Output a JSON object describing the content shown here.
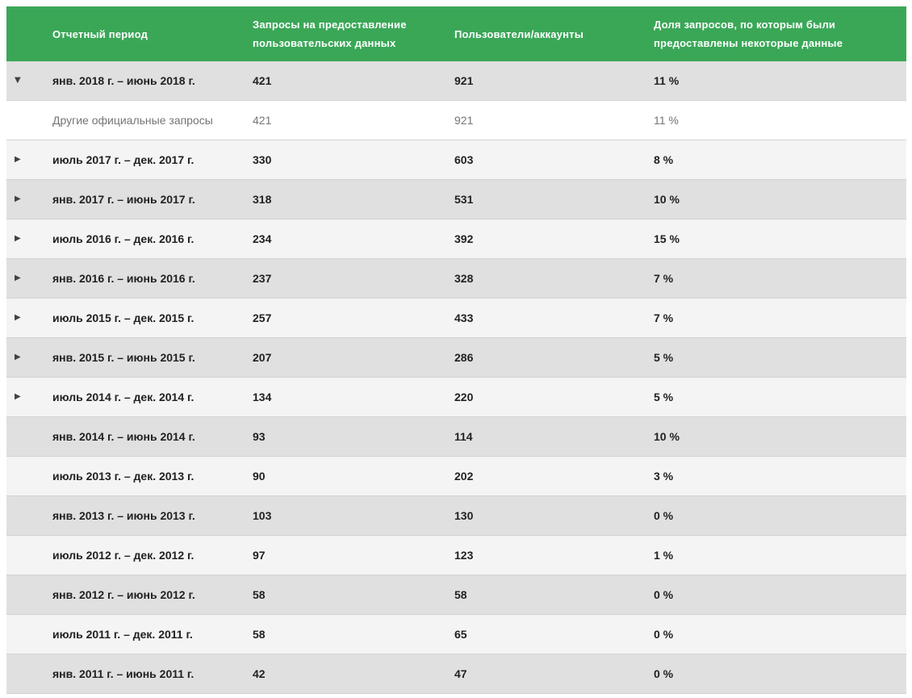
{
  "colors": {
    "header_bg": "#3aa757",
    "header_text": "#ffffff",
    "row_dark_bg": "#e0e0e0",
    "row_light_bg": "#f4f4f4",
    "subrow_bg": "#ffffff",
    "primary_text": "#212121",
    "secondary_text": "#757575",
    "arrow_color": "#424242"
  },
  "icons": {
    "expanded_glyph": "▼",
    "collapsed_glyph": "▶"
  },
  "table": {
    "columns": [
      {
        "label": "Отчетный период"
      },
      {
        "label": "Запросы на предоставление пользовательских данных"
      },
      {
        "label": "Пользователи/аккаунты"
      },
      {
        "label": "Доля запросов, по которым были предоставлены некоторые данные"
      }
    ],
    "rows": [
      {
        "period": "янв. 2018 г. – июнь 2018 г.",
        "requests": "421",
        "users": "921",
        "share": "11 %",
        "expander": "expanded",
        "variant": "dark"
      },
      {
        "period": "Другие официальные запросы",
        "requests": "421",
        "users": "921",
        "share": "11 %",
        "expander": "none",
        "variant": "subrow"
      },
      {
        "period": "июль 2017 г. – дек. 2017 г.",
        "requests": "330",
        "users": "603",
        "share": "8 %",
        "expander": "collapsed",
        "variant": "light"
      },
      {
        "period": "янв. 2017 г. – июнь 2017 г.",
        "requests": "318",
        "users": "531",
        "share": "10 %",
        "expander": "collapsed",
        "variant": "dark"
      },
      {
        "period": "июль 2016 г. – дек. 2016 г.",
        "requests": "234",
        "users": "392",
        "share": "15 %",
        "expander": "collapsed",
        "variant": "light"
      },
      {
        "period": "янв. 2016 г. – июнь 2016 г.",
        "requests": "237",
        "users": "328",
        "share": "7 %",
        "expander": "collapsed",
        "variant": "dark"
      },
      {
        "period": "июль 2015 г. – дек. 2015 г.",
        "requests": "257",
        "users": "433",
        "share": "7 %",
        "expander": "collapsed",
        "variant": "light"
      },
      {
        "period": "янв. 2015 г. – июнь 2015 г.",
        "requests": "207",
        "users": "286",
        "share": "5 %",
        "expander": "collapsed",
        "variant": "dark"
      },
      {
        "period": "июль 2014 г. – дек. 2014 г.",
        "requests": "134",
        "users": "220",
        "share": "5 %",
        "expander": "collapsed",
        "variant": "light"
      },
      {
        "period": "янв. 2014 г. – июнь 2014 г.",
        "requests": "93",
        "users": "114",
        "share": "10 %",
        "expander": "none",
        "variant": "dark"
      },
      {
        "period": "июль 2013 г. – дек. 2013 г.",
        "requests": "90",
        "users": "202",
        "share": "3 %",
        "expander": "none",
        "variant": "light"
      },
      {
        "period": "янв. 2013 г. – июнь 2013 г.",
        "requests": "103",
        "users": "130",
        "share": "0 %",
        "expander": "none",
        "variant": "dark"
      },
      {
        "period": "июль 2012 г. – дек. 2012 г.",
        "requests": "97",
        "users": "123",
        "share": "1 %",
        "expander": "none",
        "variant": "light"
      },
      {
        "period": "янв. 2012 г. – июнь 2012 г.",
        "requests": "58",
        "users": "58",
        "share": "0 %",
        "expander": "none",
        "variant": "dark"
      },
      {
        "period": "июль 2011 г. – дек. 2011 г.",
        "requests": "58",
        "users": "65",
        "share": "0 %",
        "expander": "none",
        "variant": "light"
      },
      {
        "period": "янв. 2011 г. – июнь 2011 г.",
        "requests": "42",
        "users": "47",
        "share": "0 %",
        "expander": "none",
        "variant": "dark"
      }
    ]
  }
}
